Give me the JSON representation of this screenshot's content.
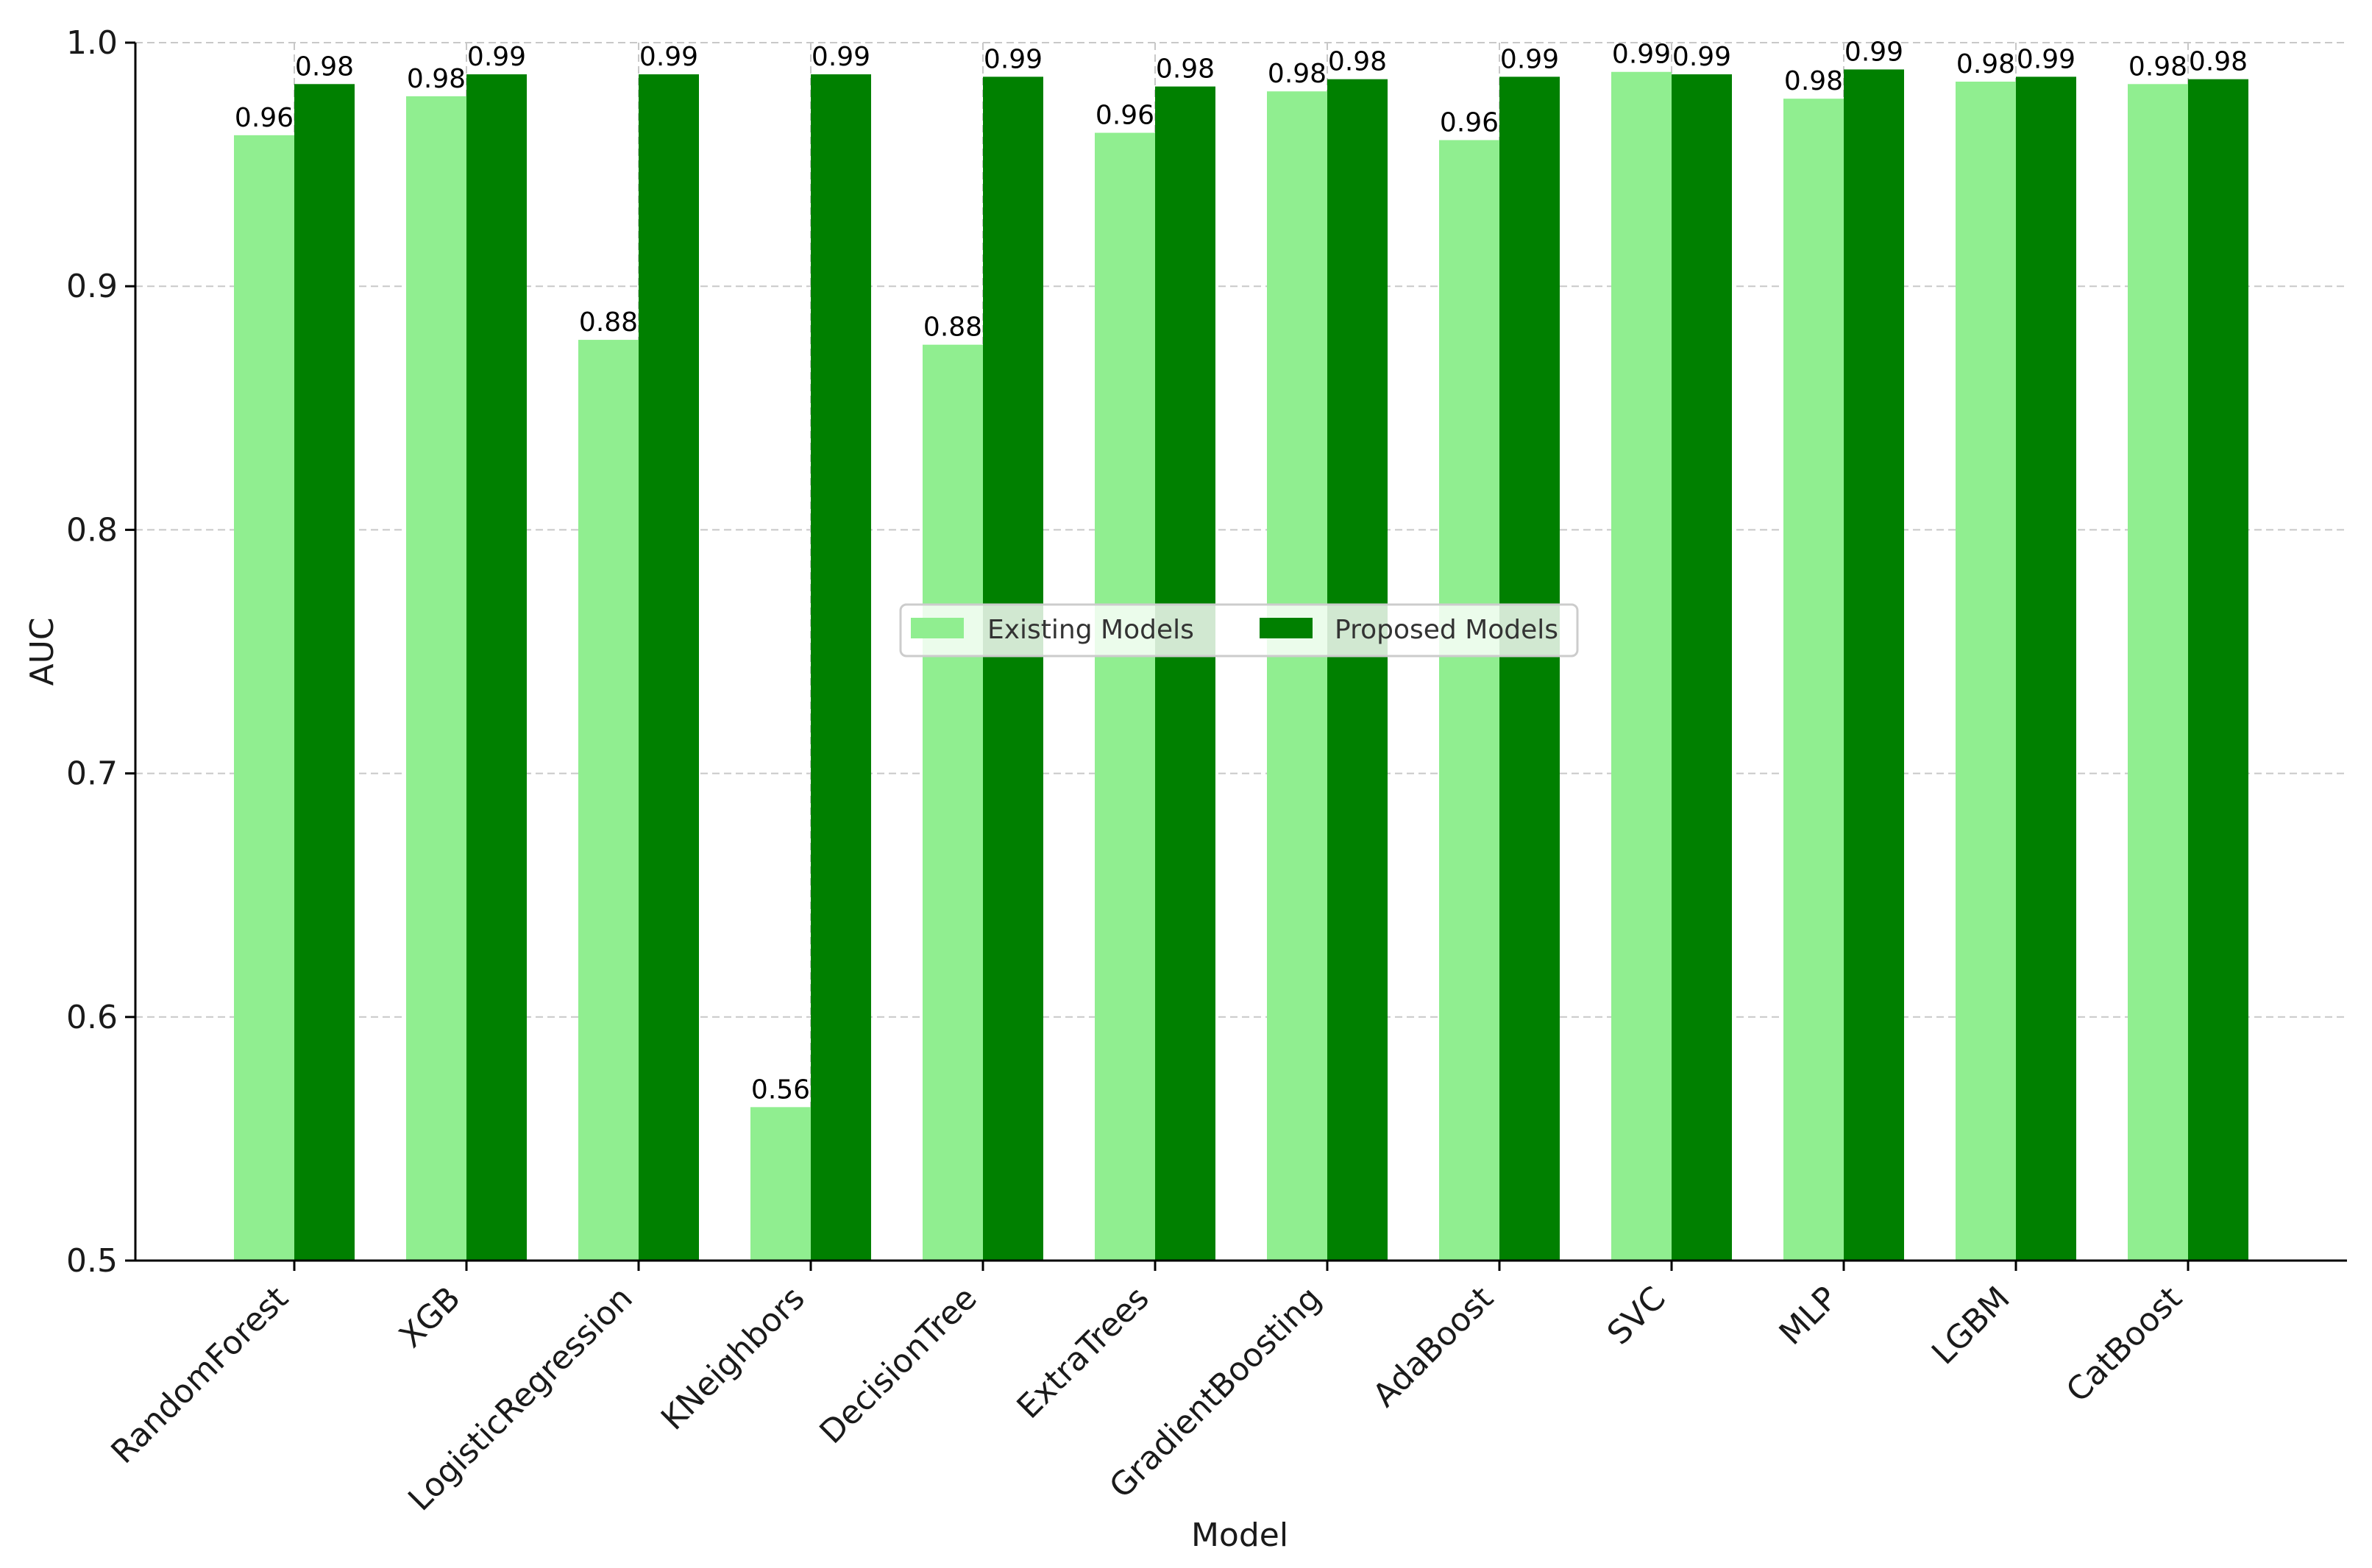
{
  "chart_data": {
    "type": "bar",
    "title": "",
    "xlabel": "Model",
    "ylabel": "AUC",
    "ylim": [
      0.5,
      1.0
    ],
    "yticks": [
      "0.5",
      "0.6",
      "0.7",
      "0.8",
      "0.9",
      "1.0"
    ],
    "grid": true,
    "legend_placement": "center",
    "categories": [
      "RandomForest",
      "XGB",
      "LogisticRegression",
      "KNeighbors",
      "DecisionTree",
      "ExtraTrees",
      "GradientBoosting",
      "AdaBoost",
      "SVC",
      "MLP",
      "LGBM",
      "CatBoost"
    ],
    "series": [
      {
        "name": "Existing Models",
        "color": "#90ee90",
        "values": [
          0.962,
          0.978,
          0.878,
          0.563,
          0.876,
          0.963,
          0.98,
          0.96,
          0.988,
          0.977,
          0.984,
          0.983
        ],
        "labels": [
          "0.96",
          "0.98",
          "0.88",
          "0.56",
          "0.88",
          "0.96",
          "0.98",
          "0.96",
          "0.99",
          "0.98",
          "0.98",
          "0.98"
        ]
      },
      {
        "name": "Proposed Models",
        "color": "#008000",
        "values": [
          0.983,
          0.987,
          0.987,
          0.987,
          0.986,
          0.982,
          0.985,
          0.986,
          0.987,
          0.989,
          0.986,
          0.985
        ],
        "labels": [
          "0.98",
          "0.99",
          "0.99",
          "0.99",
          "0.99",
          "0.98",
          "0.98",
          "0.99",
          "0.99",
          "0.99",
          "0.99",
          "0.98"
        ]
      }
    ]
  }
}
